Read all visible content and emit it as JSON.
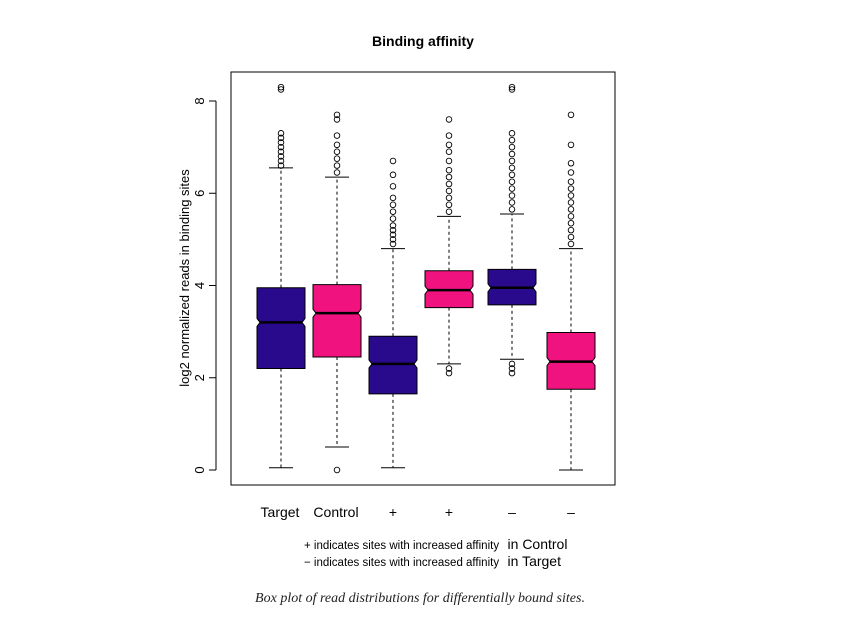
{
  "chart_data": {
    "type": "box",
    "title": "Binding affinity",
    "ylabel": "log2 normalized reads in binding sites",
    "ylim": [
      -0.35,
      9.0
    ],
    "yticks": [
      0,
      2,
      4,
      6,
      8
    ],
    "categories": [
      "Target",
      "Control",
      "+",
      "+",
      "–",
      "–"
    ],
    "boxes": [
      {
        "label": "Target",
        "color": "#2a0a8c",
        "q1": 2.2,
        "median": 3.2,
        "q3": 3.95,
        "whisker_low": 0.05,
        "whisker_high": 6.55,
        "outliers_high": [
          6.6,
          6.7,
          6.8,
          6.9,
          7.0,
          7.1,
          7.2,
          7.3,
          8.25,
          8.3
        ],
        "outliers_low": []
      },
      {
        "label": "Control",
        "color": "#f0127f",
        "q1": 2.45,
        "median": 3.4,
        "q3": 4.02,
        "whisker_low": 0.5,
        "whisker_high": 6.35,
        "outliers_high": [
          6.45,
          6.6,
          6.75,
          6.9,
          7.05,
          7.25,
          7.6,
          7.7
        ],
        "outliers_low": [
          0.0
        ]
      },
      {
        "label": "+",
        "color": "#2a0a8c",
        "q1": 1.65,
        "median": 2.3,
        "q3": 2.9,
        "whisker_low": 0.05,
        "whisker_high": 4.8,
        "outliers_high": [
          4.9,
          5.0,
          5.1,
          5.2,
          5.3,
          5.45,
          5.6,
          5.75,
          5.9,
          6.15,
          6.4,
          6.7
        ],
        "outliers_low": []
      },
      {
        "label": "+",
        "color": "#f0127f",
        "q1": 3.52,
        "median": 3.9,
        "q3": 4.32,
        "whisker_low": 2.3,
        "whisker_high": 5.5,
        "outliers_high": [
          5.6,
          5.75,
          5.9,
          6.05,
          6.2,
          6.35,
          6.5,
          6.7,
          6.9,
          7.05,
          7.25,
          7.6
        ],
        "outliers_low": [
          2.2,
          2.1
        ]
      },
      {
        "label": "–",
        "color": "#2a0a8c",
        "q1": 3.58,
        "median": 3.95,
        "q3": 4.35,
        "whisker_low": 2.4,
        "whisker_high": 5.55,
        "outliers_high": [
          5.65,
          5.8,
          5.95,
          6.1,
          6.25,
          6.4,
          6.55,
          6.7,
          6.85,
          7.0,
          7.15,
          7.3,
          8.25,
          8.3
        ],
        "outliers_low": [
          2.3,
          2.2,
          2.1
        ]
      },
      {
        "label": "–",
        "color": "#f0127f",
        "q1": 1.75,
        "median": 2.35,
        "q3": 2.98,
        "whisker_low": 0.0,
        "whisker_high": 4.8,
        "outliers_high": [
          4.9,
          5.05,
          5.2,
          5.35,
          5.5,
          5.65,
          5.8,
          5.95,
          6.1,
          6.25,
          6.45,
          6.65,
          7.05,
          7.7
        ],
        "outliers_low": []
      }
    ],
    "grid": false,
    "notes": [
      {
        "small": "+ indicates sites with increased affinity",
        "big": "in Control"
      },
      {
        "small": "− indicates sites with increased affinity",
        "big": "in Target"
      }
    ]
  },
  "caption": "Box plot of read distributions for differentially bound sites."
}
